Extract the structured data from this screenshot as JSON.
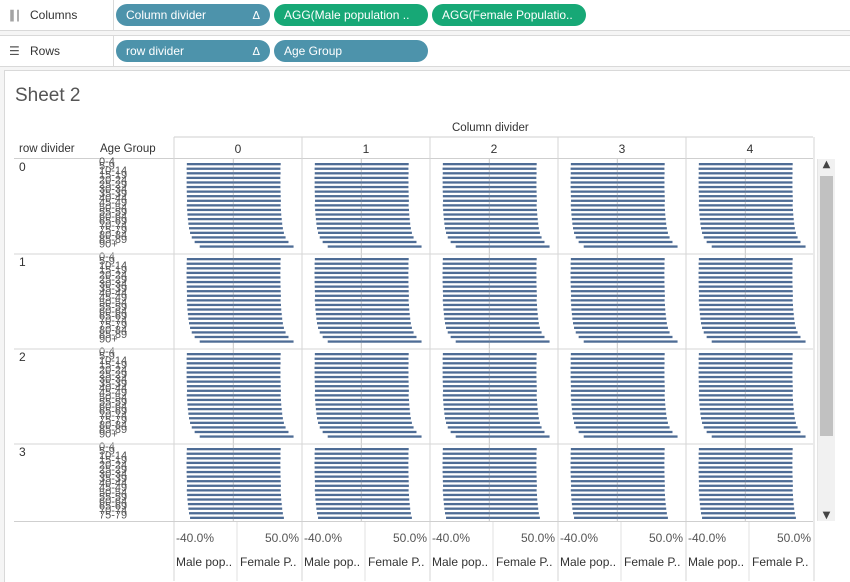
{
  "shelves": {
    "columns": {
      "label": "Columns",
      "icon": "columns-icon",
      "pills": [
        {
          "text": "Column divider",
          "delta": "Δ",
          "color": "#4d93ab"
        },
        {
          "text": "AGG(Male population ..",
          "delta": "",
          "color": "#17a876"
        },
        {
          "text": "AGG(Female Populatio..",
          "delta": "",
          "color": "#17a876"
        }
      ]
    },
    "rows": {
      "label": "Rows",
      "icon": "rows-icon",
      "pills": [
        {
          "text": "row divider",
          "delta": "Δ",
          "color": "#4d93ab"
        },
        {
          "text": "Age Group",
          "delta": "",
          "color": "#4d93ab"
        }
      ]
    }
  },
  "sheet": {
    "title": "Sheet 2",
    "column_header": "Column divider",
    "row_header_1": "row divider",
    "row_header_2": "Age Group",
    "column_values": [
      "0",
      "1",
      "2",
      "3",
      "4"
    ],
    "row_values": [
      "0",
      "1",
      "2",
      "3"
    ],
    "axis_ticks": [
      "-40.0%",
      "50.0%"
    ],
    "measure_labels": [
      "Male pop..",
      "Female P.."
    ]
  },
  "chart_data": {
    "type": "bar",
    "orientation": "horizontal",
    "bar_color": "#4e6c95",
    "categories": [
      "0-4",
      "5-9",
      "10-14",
      "15-19",
      "20-24",
      "25-29",
      "30-34",
      "35-39",
      "40-44",
      "45-49",
      "50-54",
      "55-59",
      "60-64",
      "65-69",
      "70-74",
      "75-79",
      "80-84",
      "85-89",
      "90+"
    ],
    "series": [
      {
        "name": "Male pop..",
        "values": [
          -49.5,
          -49.8,
          -49.6,
          -49.9,
          -49.7,
          -49.8,
          -49.6,
          -49.5,
          -49.3,
          -49.6,
          -49.2,
          -48.9,
          -48.4,
          -47.9,
          -47.2,
          -46.1,
          -44.3,
          -41.2,
          -35.8
        ]
      },
      {
        "name": "Female P..",
        "values": [
          50.5,
          50.2,
          50.4,
          50.1,
          50.3,
          50.2,
          50.4,
          50.5,
          50.7,
          50.4,
          50.8,
          51.1,
          51.6,
          52.1,
          52.8,
          53.9,
          55.7,
          58.8,
          64.2
        ]
      }
    ],
    "xlim": [
      -60,
      70
    ],
    "ticks": [
      "-40.0%",
      "50.0%"
    ],
    "panels_columns": [
      "0",
      "1",
      "2",
      "3",
      "4"
    ],
    "panels_rows": [
      "0",
      "1",
      "2",
      "3"
    ]
  }
}
